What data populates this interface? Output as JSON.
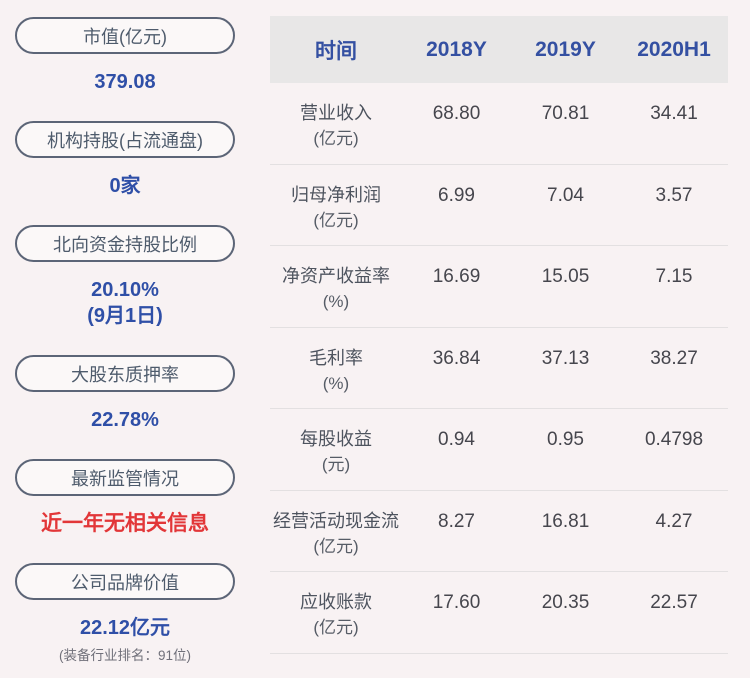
{
  "colors": {
    "page_bg": "#f8f2f3",
    "accent_blue": "#2f4fa7",
    "alert_red": "#e23638",
    "pill_border": "#5c6577",
    "header_bg": "#e8e7e7",
    "cell_text": "#46464d"
  },
  "sidebar": {
    "items": [
      {
        "label": "市值(亿元)",
        "value": "379.08"
      },
      {
        "label": "机构持股(占流通盘)",
        "value": "0家"
      },
      {
        "label": "北向资金持股比例",
        "value": "20.10%",
        "value2": "(9月1日)"
      },
      {
        "label": "大股东质押率",
        "value": "22.78%"
      },
      {
        "label": "最新监管情况",
        "value": "近一年无相关信息"
      },
      {
        "label": "公司品牌价值",
        "value": "22.12亿元",
        "note": "(装备行业排名：91位)"
      }
    ]
  },
  "table": {
    "headers": [
      "时间",
      "2018Y",
      "2019Y",
      "2020H1"
    ],
    "rows": [
      {
        "name": "营业收入",
        "unit": "(亿元)",
        "values": [
          "68.80",
          "70.81",
          "34.41"
        ]
      },
      {
        "name": "归母净利润",
        "unit": "(亿元)",
        "values": [
          "6.99",
          "7.04",
          "3.57"
        ]
      },
      {
        "name": "净资产收益率",
        "unit": "(%)",
        "values": [
          "16.69",
          "15.05",
          "7.15"
        ]
      },
      {
        "name": "毛利率",
        "unit": "(%)",
        "values": [
          "36.84",
          "37.13",
          "38.27"
        ]
      },
      {
        "name": "每股收益",
        "unit": "(元)",
        "values": [
          "0.94",
          "0.95",
          "0.4798"
        ]
      },
      {
        "name": "经营活动现金流",
        "unit": "(亿元)",
        "values": [
          "8.27",
          "16.81",
          "4.27"
        ]
      },
      {
        "name": "应收账款",
        "unit": "(亿元)",
        "values": [
          "17.60",
          "20.35",
          "22.57"
        ]
      }
    ]
  }
}
